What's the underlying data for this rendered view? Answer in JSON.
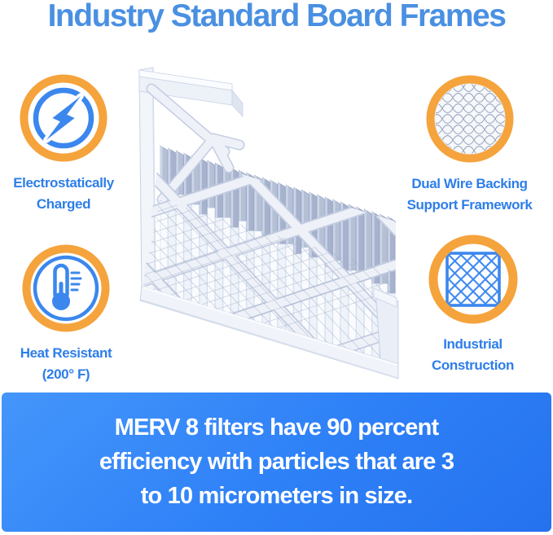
{
  "title": "Industry Standard Board Frames",
  "features": [
    {
      "name": "electrostatically-charged",
      "icon": "lightning-bolt-icon",
      "label_lines": [
        "Electrostatically",
        "Charged"
      ]
    },
    {
      "name": "dual-wire-backing",
      "icon": "wire-mesh-icon",
      "label_lines": [
        "Dual Wire Backing",
        "Support Framework"
      ]
    },
    {
      "name": "heat-resistant",
      "icon": "thermometer-icon",
      "label_lines": [
        "Heat Resistant",
        "(200° F)"
      ]
    },
    {
      "name": "industrial-construction",
      "icon": "diamond-lattice-icon",
      "label_lines": [
        "Industrial",
        "Construction"
      ]
    }
  ],
  "banner": {
    "lines": [
      "MERV 8 filters have 90 percent",
      "efficiency with particles that are 3",
      "to 10 micrometers in size."
    ]
  },
  "colors": {
    "title_blue": "#4a90e2",
    "label_blue": "#2d7ee9",
    "ring_orange": "#f5a33c",
    "icon_blue": "#3b87ee",
    "banner_blue_light": "#4496fb",
    "banner_blue_dark": "#2572ef",
    "banner_text": "#ffffff"
  }
}
